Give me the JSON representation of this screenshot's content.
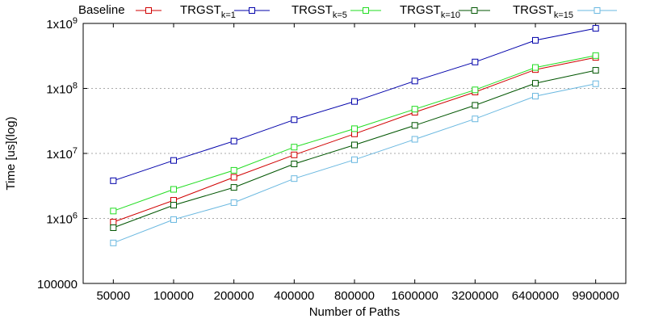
{
  "chart_data": {
    "type": "line",
    "xlabel": "Number of Paths",
    "ylabel": "Time [us](log)",
    "y_scale": "log",
    "ylim": [
      100000,
      1000000000
    ],
    "grid": "horizontal dashed",
    "legend_position": "top",
    "categories": [
      "50000",
      "100000",
      "200000",
      "400000",
      "800000",
      "1600000",
      "3200000",
      "6400000",
      "9900000"
    ],
    "y_ticks": [
      {
        "value": 100000,
        "label": "100000"
      },
      {
        "value": 1000000,
        "label": "1x10",
        "sup": "6"
      },
      {
        "value": 10000000,
        "label": "1x10",
        "sup": "7"
      },
      {
        "value": 100000000,
        "label": "1x10",
        "sup": "8"
      },
      {
        "value": 1000000000,
        "label": "1x10",
        "sup": "9"
      }
    ],
    "series": [
      {
        "name": "Baseline",
        "name_base": "Baseline",
        "name_sub": "",
        "color": "#d00000",
        "values": [
          880000,
          1900000,
          4300000,
          9500000,
          20000000,
          43000000,
          88000000,
          195000000,
          300000000
        ]
      },
      {
        "name": "TRGSTk=1",
        "name_base": "TRGST",
        "name_sub": "k=1",
        "color": "#0000aa",
        "values": [
          3800000,
          7800000,
          15500000,
          33000000,
          63000000,
          130000000,
          255000000,
          550000000,
          840000000
        ]
      },
      {
        "name": "TRGSTk=5",
        "name_base": "TRGST",
        "name_sub": "k=5",
        "color": "#22dd22",
        "values": [
          1300000,
          2800000,
          5500000,
          12500000,
          24000000,
          48000000,
          95000000,
          210000000,
          320000000
        ]
      },
      {
        "name": "TRGSTk=10",
        "name_base": "TRGST",
        "name_sub": "k=10",
        "color": "#005500",
        "values": [
          720000,
          1600000,
          3000000,
          6900000,
          13500000,
          27000000,
          55000000,
          120000000,
          190000000
        ]
      },
      {
        "name": "TRGSTk=15",
        "name_base": "TRGST",
        "name_sub": "k=15",
        "color": "#6ab8e0",
        "values": [
          420000,
          960000,
          1750000,
          4100000,
          8000000,
          16500000,
          34000000,
          76000000,
          118000000
        ]
      }
    ]
  }
}
